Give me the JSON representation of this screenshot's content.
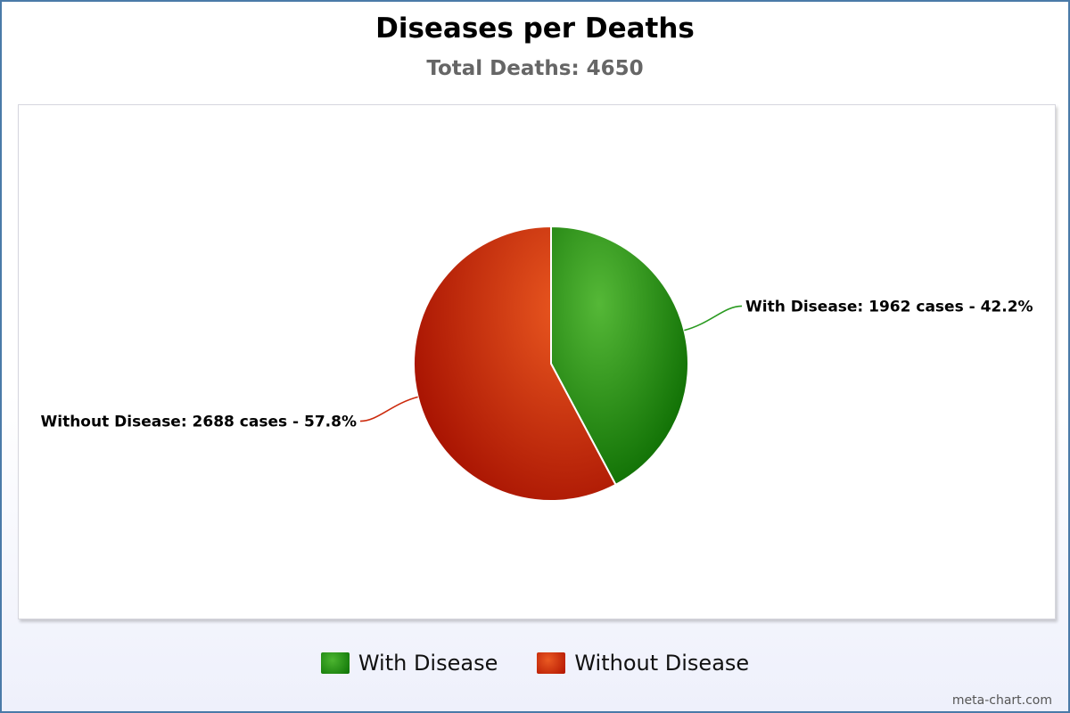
{
  "chart_data": {
    "type": "pie",
    "title": "Diseases per Deaths",
    "subtitle": "Total Deaths: 4650",
    "slices": [
      {
        "name": "With Disease",
        "value": 1962,
        "percent": 42.2,
        "label": "With Disease: 1962 cases - 42.2%",
        "color": "#2a9a20"
      },
      {
        "name": "Without Disease",
        "value": 2688,
        "percent": 57.8,
        "label": "Without Disease: 2688 cases - 57.8%",
        "color": "#cc2a0c"
      }
    ],
    "legend_placement": "bottom-center"
  },
  "legend": {
    "items": [
      "With Disease",
      "Without Disease"
    ]
  },
  "credit": "meta-chart.com"
}
